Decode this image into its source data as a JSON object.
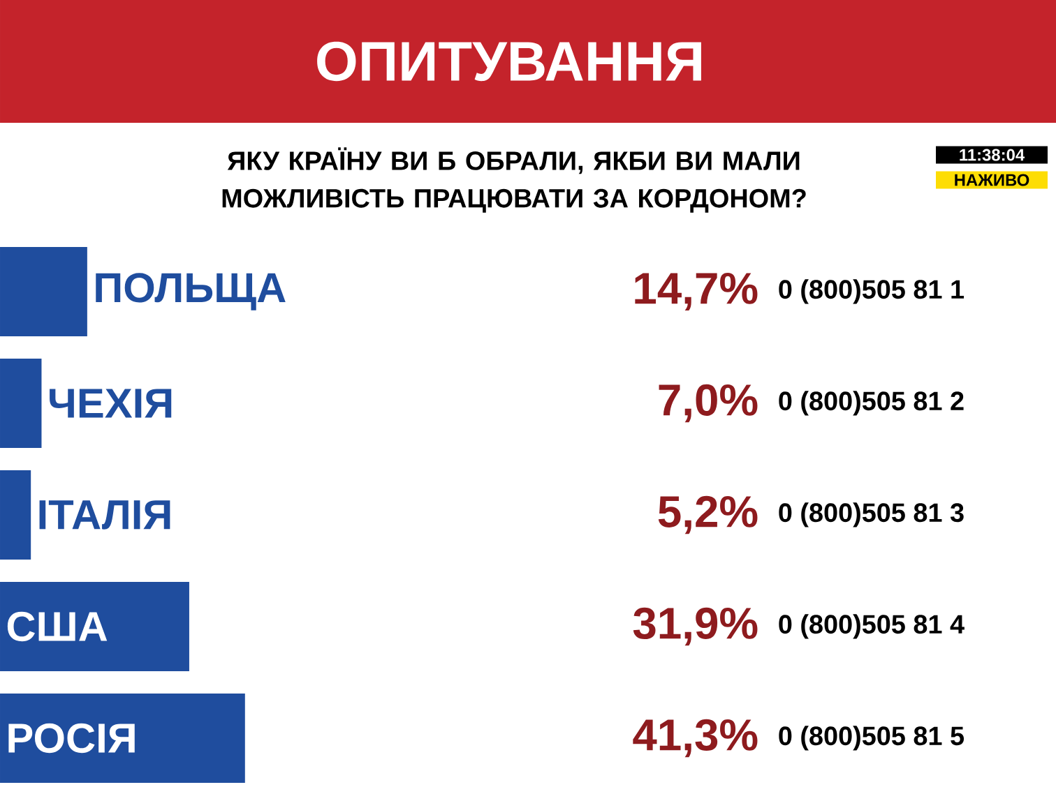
{
  "chart_data": {
    "type": "bar",
    "orientation": "horizontal",
    "title": "ОПИТУВАННЯ",
    "subtitle": "ЯКУ КРАЇНУ ВИ Б ОБРАЛИ, ЯКБИ ВИ МАЛИ МОЖЛИВІСТЬ ПРАЦЮВАТИ ЗА КОРДОНОМ?",
    "categories": [
      "ПОЛЬЩА",
      "ЧЕХІЯ",
      "ІТАЛІЯ",
      "США",
      "РОСІЯ"
    ],
    "values": [
      14.7,
      7.0,
      5.2,
      31.9,
      41.3
    ],
    "value_labels": [
      "14,7%",
      "7,0%",
      "5,2%",
      "31,9%",
      "41,3%"
    ],
    "color": "#1f4d9e",
    "annotations": [
      "0 (800)505 81 1",
      "0 (800)505 81 2",
      "0 (800)505 81 3",
      "0 (800)505 81 4",
      "0 (800)505 81 5",
      "11:38:04",
      "НАЖИВО"
    ]
  }
}
